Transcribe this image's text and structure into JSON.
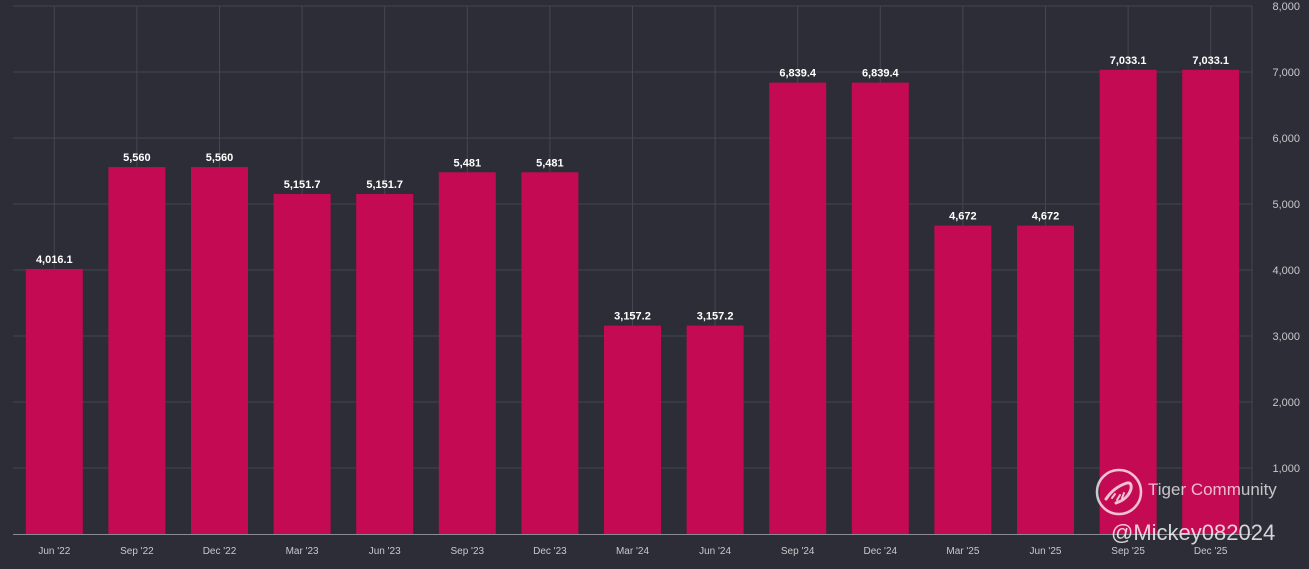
{
  "chart_data": {
    "type": "bar",
    "categories": [
      "Jun '22",
      "Sep '22",
      "Dec '22",
      "Mar '23",
      "Jun '23",
      "Sep '23",
      "Dec '23",
      "Mar '24",
      "Jun '24",
      "Sep '24",
      "Dec '24",
      "Mar '25",
      "Jun '25",
      "Sep '25",
      "Dec '25"
    ],
    "values": [
      4016.1,
      5560,
      5560,
      5151.7,
      5151.7,
      5481,
      5481,
      3157.2,
      3157.2,
      6839.4,
      6839.4,
      4672,
      4672,
      7033.1,
      7033.1
    ],
    "value_labels": [
      "4,016.1",
      "5,560",
      "5,560",
      "5,151.7",
      "5,151.7",
      "5,481",
      "5,481",
      "3,157.2",
      "3,157.2",
      "6,839.4",
      "6,839.4",
      "4,672",
      "4,672",
      "7,033.1",
      "7,033.1"
    ],
    "y_ticks": [
      1000,
      2000,
      3000,
      4000,
      5000,
      6000,
      7000,
      8000
    ],
    "y_tick_labels": [
      "1,000",
      "2,000",
      "3,000",
      "4,000",
      "5,000",
      "6,000",
      "7,000",
      "8,000"
    ],
    "ylim": [
      0,
      8000
    ],
    "y_axis_side": "right",
    "grid": true,
    "title": "",
    "xlabel": "",
    "ylabel": ""
  },
  "colors": {
    "background": "#2c2d37",
    "bar": "#c40a52",
    "grid": "#45464f",
    "axis_text": "#c8c8cc",
    "label_text": "#ffffff"
  },
  "watermark": {
    "brand": "Tiger Community",
    "user": "@Mickey082024",
    "logo_icon": "tiger-logo-icon"
  }
}
